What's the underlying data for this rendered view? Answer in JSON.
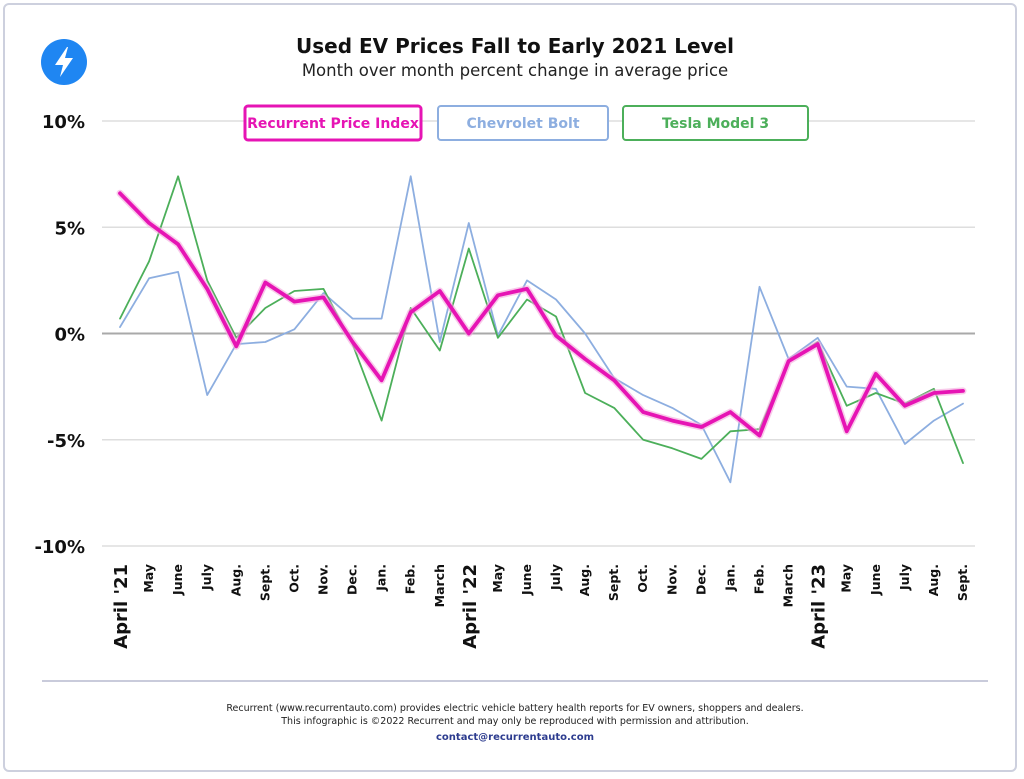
{
  "header": {
    "title": "Used EV Prices Fall to Early 2021 Level",
    "subtitle": "Month over month percent change in average price",
    "logo_icon": "lightning-bolt-icon"
  },
  "chart_data": {
    "type": "line",
    "title": "Used EV Prices Fall to Early 2021 Level",
    "subtitle": "Month over month percent change in average price",
    "categories": [
      "April '21",
      "May",
      "June",
      "July",
      "Aug.",
      "Sept.",
      "Oct.",
      "Nov.",
      "Dec.",
      "Jan.",
      "Feb.",
      "March",
      "April '22",
      "May",
      "June",
      "July",
      "Aug.",
      "Sept.",
      "Oct.",
      "Nov.",
      "Dec.",
      "Jan.",
      "Feb.",
      "March",
      "April '23",
      "May",
      "June",
      "July",
      "Aug.",
      "Sept."
    ],
    "major_categories": [
      "April '21",
      "April '22",
      "April '23"
    ],
    "yticks": [
      10,
      5,
      0,
      -5,
      -10
    ],
    "ytick_labels": [
      "10%",
      "5%",
      "0%",
      "-5%",
      "-10%"
    ],
    "ylim": [
      -10,
      10
    ],
    "grid": true,
    "legend_position": "top-center",
    "series": [
      {
        "name": "Recurrent Price Index",
        "color": "#e614b4",
        "values": [
          6.6,
          5.2,
          4.2,
          2.1,
          -0.6,
          2.4,
          1.5,
          1.7,
          -0.4,
          -2.2,
          1.0,
          2.0,
          0.0,
          1.8,
          2.1,
          -0.1,
          -1.2,
          -2.2,
          -3.7,
          -4.1,
          -4.4,
          -3.7,
          -4.8,
          -1.3,
          -0.5,
          -4.6,
          -1.9,
          -3.4,
          -2.8,
          -2.7
        ]
      },
      {
        "name": "Chevrolet Bolt",
        "color": "#8daee0",
        "values": [
          0.3,
          2.6,
          2.9,
          -2.9,
          -0.5,
          -0.4,
          0.2,
          1.9,
          0.7,
          0.7,
          7.4,
          -0.4,
          5.2,
          -0.1,
          2.5,
          1.6,
          0.0,
          -2.1,
          -2.9,
          -3.5,
          -4.3,
          -7.0,
          2.2,
          -1.2,
          -0.2,
          -2.5,
          -2.6,
          -5.2,
          -4.1,
          -3.3
        ]
      },
      {
        "name": "Tesla Model 3",
        "color": "#4caf5a",
        "values": [
          0.7,
          3.4,
          7.4,
          2.5,
          -0.2,
          1.2,
          2.0,
          2.1,
          -0.5,
          -4.1,
          1.2,
          -0.8,
          4.0,
          -0.2,
          1.6,
          0.8,
          -2.8,
          -3.5,
          -5.0,
          -5.4,
          -5.9,
          -4.6,
          -4.5,
          -1.3,
          -0.4,
          -3.4,
          -2.8,
          -3.3,
          -2.6,
          -6.1
        ]
      }
    ]
  },
  "footer": {
    "line1": "Recurrent (www.recurrentauto.com) provides electric vehicle battery health reports for EV owners, shoppers and dealers.",
    "line2": "This infographic is ©2022 Recurrent and may only be reproduced with permission and attribution.",
    "contact": "contact@recurrentauto.com"
  }
}
